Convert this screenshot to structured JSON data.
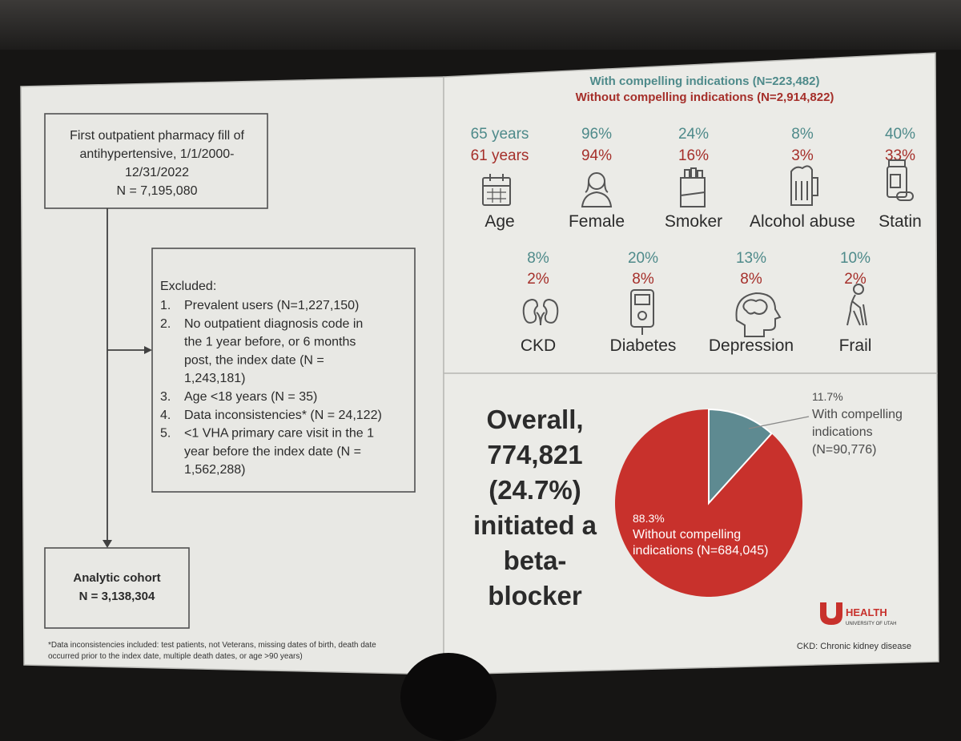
{
  "flowchart": {
    "first_box_lines": [
      "First outpatient pharmacy fill of",
      "antihypertensive, 1/1/2000-",
      "12/31/2022",
      "N = 7,195,080"
    ],
    "excluded": {
      "title": "Excluded:",
      "lines": [
        {
          "num": "1.",
          "text": "Prevalent users (N=1,227,150)"
        },
        {
          "num": "2.",
          "text": "No outpatient diagnosis code in"
        },
        {
          "num": "",
          "text": "the 1 year before, or 6 months"
        },
        {
          "num": "",
          "text": "post, the index date (N ="
        },
        {
          "num": "",
          "text": "1,243,181)"
        },
        {
          "num": "3.",
          "text": "Age <18 years (N = 35)"
        },
        {
          "num": "4.",
          "text": "Data inconsistencies* (N = 24,122)"
        },
        {
          "num": "5.",
          "text": "<1 VHA primary care visit in the 1"
        },
        {
          "num": "",
          "text": "year before the index date (N ="
        },
        {
          "num": "",
          "text": "1,562,288)"
        }
      ]
    },
    "cohort_lines": [
      "Analytic cohort",
      "N = 3,138,304"
    ],
    "footnote_lines": [
      "*Data inconsistencies included: test patients, not Veterans, missing dates of birth, death date",
      "occurred prior to the index date, multiple death dates, or age >90 years)"
    ]
  },
  "characteristics": {
    "legend_with": "With compelling indications (N=223,482)",
    "legend_without": "Without compelling indications (N=2,914,822)",
    "row1": [
      {
        "name": "age-icon",
        "label": "Age",
        "with": "65 years",
        "without": "61 years"
      },
      {
        "name": "female-icon",
        "label": "Female",
        "with": "96%",
        "without": "94%"
      },
      {
        "name": "smoker-icon",
        "label": "Smoker",
        "with": "24%",
        "without": "16%"
      },
      {
        "name": "alcohol-icon",
        "label": "Alcohol abuse",
        "with": "8%",
        "without": "3%"
      },
      {
        "name": "statin-icon",
        "label": "Statin",
        "with": "40%",
        "without": "33%"
      }
    ],
    "row2": [
      {
        "name": "kidney-icon",
        "label": "CKD",
        "with": "8%",
        "without": "2%"
      },
      {
        "name": "glucometer-icon",
        "label": "Diabetes",
        "with": "20%",
        "without": "8%"
      },
      {
        "name": "brain-icon",
        "label": "Depression",
        "with": "13%",
        "without": "8%"
      },
      {
        "name": "frail-person-icon",
        "label": "Frail",
        "with": "10%",
        "without": "2%"
      }
    ]
  },
  "overall": {
    "lines": [
      "Overall,",
      "774,821",
      "(24.7%)",
      "initiated a",
      "beta-",
      "blocker"
    ]
  },
  "pie": {
    "with_lines": [
      "11.7%",
      "With compelling",
      "indications",
      "(N=90,776)"
    ],
    "without_lines": [
      "88.3%",
      "Without compelling",
      "indications (N=684,045)"
    ],
    "with_pct": 11.7,
    "without_pct": 88.3,
    "with_color": "#5e8a91",
    "without_color": "#c8312c"
  },
  "logo": {
    "health": "HEALTH",
    "university": "UNIVERSITY OF UTAH"
  },
  "footnote_ckd": "CKD: Chronic kidney disease",
  "colors": {
    "teal_text": "#4e8a8a",
    "red_text": "#a52f2a",
    "dark_text": "#2b2b2b",
    "slide_bg": "#e9e9e5"
  }
}
